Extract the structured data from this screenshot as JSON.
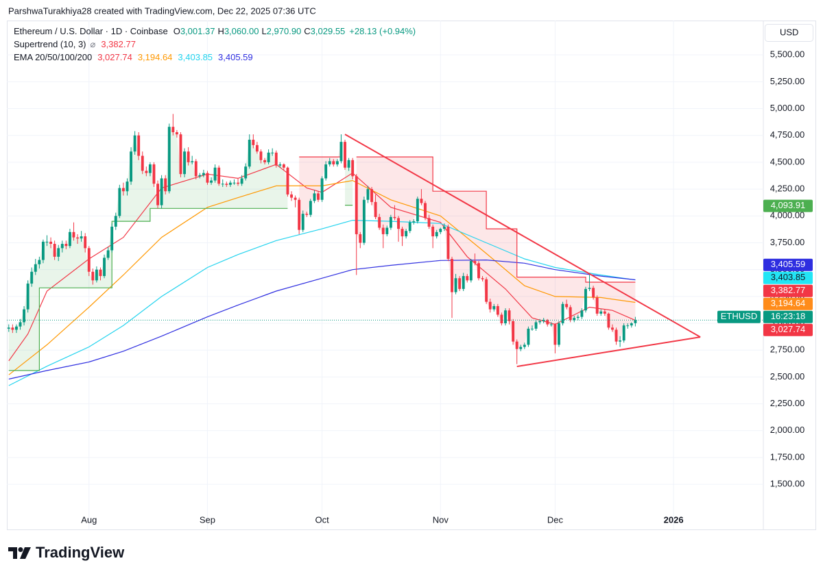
{
  "attribution": "ParshwaTurakhiya28 created with TradingView.com, Dec 22, 2025 07:36 UTC",
  "footer_logo": "TradingView",
  "chart_data": {
    "type": "candlestick",
    "title": "Ethereum / U.S. Dollar · 1D · Coinbase",
    "ohlc_legend": [
      {
        "label": "O",
        "value": "3,001.37"
      },
      {
        "label": "H",
        "value": "3,060.00"
      },
      {
        "label": "L",
        "value": "2,970.90"
      },
      {
        "label": "C",
        "value": "3,029.55"
      }
    ],
    "change": "+28.13 (+0.94%)",
    "indicators": [
      {
        "name": "Supertrend (10, 3)",
        "icon": "⌀",
        "values": [
          {
            "text": "3,382.77",
            "color": "#f23645"
          }
        ]
      },
      {
        "name": "EMA 20/50/100/200",
        "values": [
          {
            "text": "3,027.74",
            "color": "#f23645"
          },
          {
            "text": "3,194.64",
            "color": "#ff9800"
          },
          {
            "text": "3,403.85",
            "color": "#22d3ee"
          },
          {
            "text": "3,405.59",
            "color": "#2e2ee0"
          }
        ]
      }
    ],
    "currency": "USD",
    "up_color": "#089981",
    "down_color": "#f23645",
    "candles": [
      [
        2950,
        2990,
        2920,
        2960
      ],
      [
        2960,
        2990,
        2910,
        2940
      ],
      [
        2940,
        2990,
        2910,
        2970
      ],
      [
        2970,
        3040,
        2940,
        3010
      ],
      [
        3010,
        3160,
        2980,
        3130
      ],
      [
        3130,
        3400,
        3100,
        3370
      ],
      [
        3370,
        3520,
        3340,
        3480
      ],
      [
        3480,
        3600,
        3450,
        3550
      ],
      [
        3550,
        3620,
        3510,
        3590
      ],
      [
        3590,
        3780,
        3560,
        3760
      ],
      [
        3760,
        3820,
        3720,
        3760
      ],
      [
        3760,
        3800,
        3700,
        3740
      ],
      [
        3740,
        3770,
        3590,
        3620
      ],
      [
        3620,
        3730,
        3580,
        3700
      ],
      [
        3700,
        3770,
        3660,
        3740
      ],
      [
        3740,
        3770,
        3690,
        3720
      ],
      [
        3720,
        3880,
        3700,
        3850
      ],
      [
        3850,
        3940,
        3770,
        3800
      ],
      [
        3800,
        3830,
        3740,
        3790
      ],
      [
        3790,
        3860,
        3760,
        3810
      ],
      [
        3810,
        3840,
        3660,
        3700
      ],
      [
        3700,
        3720,
        3440,
        3480
      ],
      [
        3480,
        3510,
        3360,
        3400
      ],
      [
        3400,
        3530,
        3380,
        3500
      ],
      [
        3500,
        3520,
        3400,
        3440
      ],
      [
        3440,
        3640,
        3420,
        3610
      ],
      [
        3610,
        3710,
        3590,
        3680
      ],
      [
        3680,
        3930,
        3660,
        3900
      ],
      [
        3900,
        4030,
        3870,
        4000
      ],
      [
        4000,
        4290,
        3980,
        4260
      ],
      [
        4260,
        4310,
        4190,
        4230
      ],
      [
        4230,
        4350,
        4190,
        4320
      ],
      [
        4320,
        4640,
        4290,
        4600
      ],
      [
        4600,
        4790,
        4570,
        4750
      ],
      [
        4750,
        4780,
        4520,
        4560
      ],
      [
        4560,
        4600,
        4390,
        4420
      ],
      [
        4420,
        4460,
        4370,
        4400
      ],
      [
        4400,
        4500,
        4370,
        4480
      ],
      [
        4480,
        4500,
        4270,
        4300
      ],
      [
        4300,
        4330,
        4070,
        4100
      ],
      [
        4100,
        4380,
        4070,
        4350
      ],
      [
        4350,
        4380,
        4200,
        4230
      ],
      [
        4230,
        4860,
        4210,
        4830
      ],
      [
        4830,
        4950,
        4750,
        4780
      ],
      [
        4780,
        4800,
        4730,
        4760
      ],
      [
        4760,
        4780,
        4360,
        4390
      ],
      [
        4390,
        4630,
        4360,
        4600
      ],
      [
        4600,
        4640,
        4470,
        4500
      ],
      [
        4500,
        4560,
        4480,
        4510
      ],
      [
        4510,
        4530,
        4340,
        4370
      ],
      [
        4370,
        4400,
        4350,
        4380
      ],
      [
        4380,
        4430,
        4360,
        4400
      ],
      [
        4400,
        4420,
        4290,
        4310
      ],
      [
        4310,
        4360,
        4290,
        4330
      ],
      [
        4330,
        4480,
        4310,
        4450
      ],
      [
        4450,
        4470,
        4280,
        4300
      ],
      [
        4300,
        4340,
        4270,
        4300
      ],
      [
        4300,
        4320,
        4270,
        4290
      ],
      [
        4290,
        4330,
        4270,
        4310
      ],
      [
        4310,
        4340,
        4290,
        4310
      ],
      [
        4310,
        4350,
        4280,
        4300
      ],
      [
        4300,
        4380,
        4280,
        4350
      ],
      [
        4350,
        4490,
        4330,
        4460
      ],
      [
        4460,
        4760,
        4440,
        4710
      ],
      [
        4710,
        4760,
        4630,
        4660
      ],
      [
        4660,
        4690,
        4580,
        4600
      ],
      [
        4600,
        4620,
        4490,
        4520
      ],
      [
        4520,
        4540,
        4480,
        4500
      ],
      [
        4500,
        4620,
        4480,
        4590
      ],
      [
        4590,
        4630,
        4560,
        4590
      ],
      [
        4590,
        4610,
        4450,
        4470
      ],
      [
        4470,
        4500,
        4450,
        4480
      ],
      [
        4480,
        4490,
        4430,
        4450
      ],
      [
        4450,
        4460,
        4180,
        4200
      ],
      [
        4200,
        4230,
        4140,
        4170
      ],
      [
        4170,
        4190,
        4080,
        4150
      ],
      [
        4150,
        4170,
        3830,
        3870
      ],
      [
        3870,
        4050,
        3850,
        4020
      ],
      [
        4020,
        4040,
        3990,
        4010
      ],
      [
        4010,
        4160,
        3990,
        4140
      ],
      [
        4140,
        4240,
        4120,
        4210
      ],
      [
        4210,
        4230,
        4130,
        4150
      ],
      [
        4150,
        4370,
        4130,
        4350
      ],
      [
        4350,
        4510,
        4330,
        4480
      ],
      [
        4480,
        4540,
        4460,
        4510
      ],
      [
        4510,
        4530,
        4460,
        4480
      ],
      [
        4480,
        4530,
        4460,
        4510
      ],
      [
        4510,
        4760,
        4490,
        4690
      ],
      [
        4690,
        4710,
        4430,
        4450
      ],
      [
        4450,
        4540,
        4420,
        4520
      ],
      [
        4520,
        4540,
        4340,
        4370
      ],
      [
        4370,
        4390,
        3450,
        3830
      ],
      [
        3830,
        3850,
        3700,
        3750
      ],
      [
        3750,
        4180,
        3730,
        4150
      ],
      [
        4150,
        4280,
        4120,
        4250
      ],
      [
        4250,
        4270,
        4100,
        4130
      ],
      [
        4130,
        4200,
        3970,
        3990
      ],
      [
        3990,
        4020,
        3870,
        3890
      ],
      [
        3890,
        3920,
        3700,
        3830
      ],
      [
        3830,
        3910,
        3810,
        3890
      ],
      [
        3890,
        4010,
        3870,
        3990
      ],
      [
        3990,
        4100,
        3960,
        3980
      ],
      [
        3980,
        4000,
        3760,
        3880
      ],
      [
        3880,
        3900,
        3720,
        3810
      ],
      [
        3810,
        3880,
        3790,
        3860
      ],
      [
        3860,
        3960,
        3840,
        3940
      ],
      [
        3940,
        3970,
        3920,
        3950
      ],
      [
        3950,
        4180,
        3930,
        4160
      ],
      [
        4160,
        4250,
        4100,
        4120
      ],
      [
        4120,
        4140,
        3960,
        3980
      ],
      [
        3980,
        4010,
        3880,
        3900
      ],
      [
        3900,
        3920,
        3700,
        3810
      ],
      [
        3810,
        3870,
        3790,
        3850
      ],
      [
        3850,
        3890,
        3830,
        3880
      ],
      [
        3880,
        3930,
        3860,
        3900
      ],
      [
        3900,
        3920,
        3580,
        3600
      ],
      [
        3600,
        3620,
        3050,
        3290
      ],
      [
        3290,
        3460,
        3270,
        3420
      ],
      [
        3420,
        3440,
        3300,
        3320
      ],
      [
        3320,
        3470,
        3300,
        3440
      ],
      [
        3440,
        3460,
        3380,
        3400
      ],
      [
        3400,
        3600,
        3380,
        3580
      ],
      [
        3580,
        3650,
        3540,
        3560
      ],
      [
        3560,
        3580,
        3400,
        3420
      ],
      [
        3420,
        3440,
        3390,
        3410
      ],
      [
        3410,
        3430,
        3180,
        3200
      ],
      [
        3200,
        3230,
        3100,
        3130
      ],
      [
        3130,
        3180,
        3110,
        3160
      ],
      [
        3160,
        3180,
        3060,
        3080
      ],
      [
        3080,
        3100,
        2980,
        3000
      ],
      [
        3000,
        3140,
        2980,
        3120
      ],
      [
        3120,
        3140,
        2990,
        3020
      ],
      [
        3020,
        3040,
        2800,
        2830
      ],
      [
        2830,
        2850,
        2620,
        2760
      ],
      [
        2760,
        2800,
        2740,
        2780
      ],
      [
        2780,
        2820,
        2760,
        2800
      ],
      [
        2800,
        2970,
        2780,
        2950
      ],
      [
        2950,
        2980,
        2930,
        2950
      ],
      [
        2950,
        3030,
        2930,
        3010
      ],
      [
        3010,
        3040,
        2990,
        3020
      ],
      [
        3020,
        3050,
        3000,
        3030
      ],
      [
        3030,
        3040,
        2970,
        2990
      ],
      [
        2990,
        3010,
        2970,
        2990
      ],
      [
        2990,
        3000,
        2720,
        2800
      ],
      [
        2800,
        3020,
        2780,
        3000
      ],
      [
        3000,
        3200,
        2980,
        3180
      ],
      [
        3180,
        3220,
        3130,
        3150
      ],
      [
        3150,
        3170,
        3010,
        3030
      ],
      [
        3030,
        3070,
        3010,
        3050
      ],
      [
        3050,
        3080,
        3030,
        3060
      ],
      [
        3060,
        3140,
        3040,
        3120
      ],
      [
        3120,
        3340,
        3100,
        3320
      ],
      [
        3320,
        3450,
        3300,
        3330
      ],
      [
        3330,
        3350,
        3220,
        3240
      ],
      [
        3240,
        3260,
        3070,
        3090
      ],
      [
        3090,
        3130,
        3070,
        3110
      ],
      [
        3110,
        3130,
        3070,
        3090
      ],
      [
        3090,
        3100,
        2940,
        2960
      ],
      [
        2960,
        2990,
        2920,
        2940
      ],
      [
        2940,
        2960,
        2800,
        2830
      ],
      [
        2830,
        2880,
        2780,
        2840
      ],
      [
        2840,
        3000,
        2820,
        2980
      ],
      [
        2980,
        3000,
        2950,
        2980
      ],
      [
        2980,
        3010,
        2960,
        3000
      ],
      [
        3001.37,
        3060,
        2970.9,
        3029.55
      ]
    ],
    "xlim": [
      -0.5,
      197.5
    ],
    "xticks": [
      {
        "value": 21,
        "label": "Aug"
      },
      {
        "value": 52,
        "label": "Sep"
      },
      {
        "value": 82,
        "label": "Oct"
      },
      {
        "value": 113,
        "label": "Nov"
      },
      {
        "value": 143,
        "label": "Dec"
      },
      {
        "value": 174,
        "label": "2026",
        "bold": true
      }
    ],
    "ylim": [
      1080,
      5820
    ],
    "yticks": [
      {
        "value": 1500,
        "label": "1,500.00"
      },
      {
        "value": 1750,
        "label": "1,750.00"
      },
      {
        "value": 2000,
        "label": "2,000.00"
      },
      {
        "value": 2250,
        "label": "2,250.00"
      },
      {
        "value": 2500,
        "label": "2,500.00"
      },
      {
        "value": 2750,
        "label": "2,750.00"
      },
      {
        "value": 3000,
        "label": "3,000.00"
      },
      {
        "value": 3250,
        "label": "3,250.00"
      },
      {
        "value": 3500,
        "label": "3,500.00"
      },
      {
        "value": 3750,
        "label": "3,750.00"
      },
      {
        "value": 4000,
        "label": "4,000.00"
      },
      {
        "value": 4250,
        "label": "4,250.00"
      },
      {
        "value": 4500,
        "label": "4,500.00"
      },
      {
        "value": 4750,
        "label": "4,750.00"
      },
      {
        "value": 5000,
        "label": "5,000.00"
      },
      {
        "value": 5250,
        "label": "5,250.00"
      },
      {
        "value": 5500,
        "label": "5,500.00"
      }
    ],
    "grid": true,
    "ema": [
      {
        "color": "#f23645",
        "x": [
          0,
          5,
          10,
          21,
          30,
          40,
          52,
          60,
          70,
          78,
          82,
          90,
          100,
          113,
          120,
          130,
          137,
          143,
          152,
          158,
          164
        ],
        "values": [
          2650,
          2900,
          3300,
          3600,
          3800,
          4260,
          4390,
          4350,
          4480,
          4260,
          4220,
          4400,
          4080,
          3940,
          3620,
          3320,
          3050,
          2990,
          3150,
          3120,
          3027.74
        ]
      },
      {
        "color": "#ff9800",
        "x": [
          0,
          10,
          21,
          30,
          40,
          52,
          60,
          70,
          82,
          90,
          100,
          113,
          125,
          135,
          143,
          155,
          164
        ],
        "values": [
          2520,
          2800,
          3150,
          3450,
          3800,
          4080,
          4170,
          4280,
          4280,
          4330,
          4150,
          4000,
          3650,
          3350,
          3250,
          3240,
          3194.64
        ]
      },
      {
        "color": "#22d3ee",
        "x": [
          0,
          10,
          21,
          30,
          40,
          52,
          60,
          70,
          82,
          90,
          100,
          113,
          125,
          135,
          143,
          155,
          164
        ],
        "values": [
          2420,
          2600,
          2780,
          2980,
          3250,
          3520,
          3640,
          3770,
          3880,
          3960,
          3950,
          3930,
          3750,
          3600,
          3520,
          3450,
          3403.85
        ]
      },
      {
        "color": "#2e2ee0",
        "x": [
          0,
          10,
          21,
          30,
          40,
          52,
          60,
          70,
          82,
          90,
          100,
          113,
          125,
          135,
          143,
          155,
          164
        ],
        "values": [
          2480,
          2560,
          2640,
          2740,
          2880,
          3060,
          3170,
          3300,
          3420,
          3500,
          3540,
          3585,
          3590,
          3560,
          3500,
          3440,
          3405.59
        ]
      }
    ],
    "supertrend": [
      {
        "color": "#4caf50",
        "x": [
          0,
          8,
          8,
          27,
          27,
          37,
          37,
          73,
          null,
          88,
          90
        ],
        "values": [
          2560,
          2560,
          3330,
          3330,
          3950,
          3950,
          4070,
          4070,
          null,
          4100,
          4100
        ]
      },
      {
        "color": "#f23645",
        "x": [
          76,
          87,
          null,
          91,
          111,
          111,
          125,
          125,
          133,
          133,
          151,
          151,
          164
        ],
        "values": [
          4550,
          4550,
          null,
          4550,
          4550,
          4230,
          4230,
          3880,
          3880,
          3430,
          3430,
          3382.77,
          3382.77
        ]
      }
    ],
    "trendlines": [
      {
        "color": "#f23645",
        "x": [
          88,
          181
        ],
        "values": [
          4760,
          2872
        ]
      },
      {
        "color": "#f23645",
        "x": [
          133,
          181
        ],
        "values": [
          2598,
          2872
        ]
      }
    ],
    "price_badges": [
      {
        "value": 4093.91,
        "label": "4,093.91",
        "color": "#4caf50"
      },
      {
        "value": 3405.59,
        "label": "3,405.59",
        "color": "#2e2ee0"
      },
      {
        "value": 3403.85,
        "label": "3,403.85",
        "color": "#22e5f5",
        "text_color": "#131722"
      },
      {
        "value": 3382.77,
        "label": "3,382.77",
        "color": "#f23645"
      },
      {
        "value": 3194.64,
        "label": "3,194.64",
        "color": "#ff8c1a"
      },
      {
        "value": 3029.55,
        "label": "16:23:18",
        "symbol": "ETHUSD",
        "color": "#089981"
      },
      {
        "value": 3027.74,
        "label": "3,027.74",
        "color": "#f23645"
      }
    ]
  }
}
